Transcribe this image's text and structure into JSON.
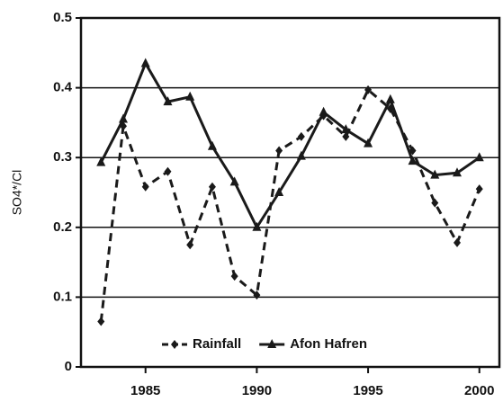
{
  "chart_data": {
    "type": "line",
    "y_label": "SO4*/Cl",
    "x": [
      1983,
      1984,
      1985,
      1986,
      1987,
      1988,
      1989,
      1990,
      1991,
      1992,
      1993,
      1994,
      1995,
      1996,
      1997,
      1998,
      1999,
      2000
    ],
    "series": [
      {
        "name": "Rainfall",
        "color": "#1a1a1a",
        "dash": true,
        "marker": "diamond",
        "values": [
          0.065,
          0.345,
          0.258,
          0.28,
          0.175,
          0.258,
          0.13,
          0.103,
          0.31,
          0.33,
          0.36,
          0.33,
          0.397,
          0.37,
          0.31,
          0.235,
          0.178,
          0.255
        ]
      },
      {
        "name": "Afon Hafren",
        "color": "#1a1a1a",
        "dash": false,
        "marker": "triangle",
        "values": [
          0.293,
          0.355,
          0.435,
          0.38,
          0.387,
          0.316,
          0.265,
          0.2,
          0.25,
          0.302,
          0.365,
          0.34,
          0.32,
          0.383,
          0.295,
          0.275,
          0.278,
          0.3
        ]
      }
    ],
    "xlim": [
      1982.1,
      2000.9
    ],
    "xticks": [
      1985,
      1990,
      1995,
      2000
    ],
    "ylim": [
      0,
      0.5
    ],
    "yticks": [
      0,
      0.1,
      0.2,
      0.3,
      0.4,
      0.5
    ],
    "grid": true,
    "legend": "bottom"
  }
}
